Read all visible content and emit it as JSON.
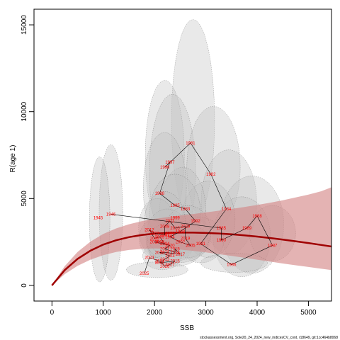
{
  "chart_data": {
    "type": "scatter",
    "xlabel": "SSB",
    "ylabel": "R(age 1)",
    "xlim": [
      -350,
      5450
    ],
    "ylim": [
      -900,
      15900
    ],
    "x_ticks": [
      0,
      1000,
      2000,
      3000,
      4000,
      5000
    ],
    "y_ticks": [
      0,
      5000,
      10000,
      15000
    ],
    "grid": false,
    "footnote": "stockassessment.org, Sole20_24_2024_new_indicesCV_cont, r18649, git:1cc464b8068",
    "colors": {
      "curve": "#a00000",
      "band": "#d28080",
      "label": "#ff0000",
      "ellipse": "#bfbfbf"
    },
    "points": [
      {
        "label": "1981",
        "x": 2700,
        "y": 8200
      },
      {
        "label": "1982",
        "x": 3100,
        "y": 6400
      },
      {
        "label": "1983",
        "x": 2600,
        "y": 4400
      },
      {
        "label": "1984",
        "x": 3400,
        "y": 4400
      },
      {
        "label": "1985",
        "x": 3300,
        "y": 3300
      },
      {
        "label": "1986",
        "x": 3500,
        "y": 1200
      },
      {
        "label": "1987",
        "x": 4300,
        "y": 2300
      },
      {
        "label": "1988",
        "x": 4000,
        "y": 4000
      },
      {
        "label": "1989",
        "x": 3800,
        "y": 3300
      },
      {
        "label": "1990",
        "x": 3300,
        "y": 2600
      },
      {
        "label": "1991",
        "x": 2900,
        "y": 2400
      },
      {
        "label": "1992",
        "x": 2800,
        "y": 3700
      },
      {
        "label": "1993",
        "x": 2500,
        "y": 3100
      },
      {
        "label": "1994",
        "x": 2300,
        "y": 2800
      },
      {
        "label": "1995",
        "x": 2400,
        "y": 4600
      },
      {
        "label": "1996",
        "x": 2200,
        "y": 6800
      },
      {
        "label": "1997",
        "x": 2300,
        "y": 7100
      },
      {
        "label": "1998",
        "x": 2100,
        "y": 5300
      },
      {
        "label": "1999",
        "x": 2400,
        "y": 3900
      },
      {
        "label": "2000",
        "x": 2000,
        "y": 2700
      },
      {
        "label": "2001",
        "x": 2200,
        "y": 2900
      },
      {
        "label": "2002",
        "x": 2500,
        "y": 2500
      },
      {
        "label": "2003",
        "x": 2300,
        "y": 1700
      },
      {
        "label": "2004",
        "x": 2200,
        "y": 2400
      },
      {
        "label": "2005",
        "x": 2700,
        "y": 2300
      },
      {
        "label": "2006",
        "x": 2100,
        "y": 2500
      },
      {
        "label": "2007",
        "x": 2000,
        "y": 3000
      },
      {
        "label": "2008",
        "x": 2200,
        "y": 3400
      },
      {
        "label": "2009",
        "x": 2100,
        "y": 2800
      },
      {
        "label": "2010",
        "x": 2400,
        "y": 3300
      },
      {
        "label": "2011",
        "x": 2300,
        "y": 3700
      },
      {
        "label": "2012",
        "x": 1900,
        "y": 3200
      },
      {
        "label": "2013",
        "x": 2200,
        "y": 1500
      },
      {
        "label": "2014",
        "x": 2100,
        "y": 1300
      },
      {
        "label": "2015",
        "x": 2400,
        "y": 1400
      },
      {
        "label": "2016",
        "x": 2200,
        "y": 1900
      },
      {
        "label": "2017",
        "x": 2500,
        "y": 1800
      },
      {
        "label": "2018",
        "x": 2400,
        "y": 2100
      },
      {
        "label": "2019",
        "x": 2600,
        "y": 2700
      },
      {
        "label": "2020",
        "x": 2300,
        "y": 2300
      },
      {
        "label": "2021",
        "x": 2200,
        "y": 2100
      },
      {
        "label": "2022",
        "x": 2100,
        "y": 1900
      },
      {
        "label": "2023",
        "x": 1900,
        "y": 1600
      },
      {
        "label": "2024",
        "x": 2100,
        "y": 1400
      },
      {
        "label": "2025",
        "x": 1800,
        "y": 700
      },
      {
        "label": "2026",
        "x": 2200,
        "y": 1100
      },
      {
        "label": "2027",
        "x": 2300,
        "y": 1200
      },
      {
        "label": "2028",
        "x": 2400,
        "y": 1900
      },
      {
        "label": "2029",
        "x": 2600,
        "y": 3400
      },
      {
        "label": "2030",
        "x": 2000,
        "y": 2500
      },
      {
        "label": "1945",
        "x": 900,
        "y": 3900
      },
      {
        "label": "1946",
        "x": 1150,
        "y": 4100
      },
      {
        "label": "2099",
        "x": 2300,
        "y": 3000
      }
    ],
    "path_order": [
      "1946",
      "1985",
      "1990",
      "1989",
      "1988",
      "1987",
      "1986",
      "1991",
      "1984",
      "1982",
      "1981",
      "1996",
      "1997",
      "1998",
      "1995",
      "1983",
      "1992",
      "1993",
      "1994",
      "2002",
      "2005",
      "2019",
      "2029",
      "2010",
      "2011",
      "2008",
      "2001",
      "2007",
      "2012",
      "2000",
      "2009",
      "2004",
      "2006",
      "2030",
      "2020",
      "2021",
      "2028",
      "2018",
      "2017",
      "2016",
      "2022",
      "2003",
      "2013",
      "2014",
      "2015",
      "2027",
      "2026",
      "2024",
      "2023",
      "2025"
    ],
    "ellipses": [
      {
        "cx": 2750,
        "cy": 9500,
        "rx": 420,
        "ry": 5800
      },
      {
        "cx": 2200,
        "cy": 7500,
        "rx": 380,
        "ry": 4300
      },
      {
        "cx": 2350,
        "cy": 6500,
        "rx": 450,
        "ry": 4500
      },
      {
        "cx": 3150,
        "cy": 6800,
        "rx": 520,
        "ry": 3500
      },
      {
        "cx": 3450,
        "cy": 4800,
        "rx": 540,
        "ry": 3000
      },
      {
        "cx": 3900,
        "cy": 3500,
        "rx": 620,
        "ry": 2800
      },
      {
        "cx": 3700,
        "cy": 2800,
        "rx": 560,
        "ry": 2300
      },
      {
        "cx": 4300,
        "cy": 3000,
        "rx": 450,
        "ry": 1600
      },
      {
        "cx": 1150,
        "cy": 4200,
        "rx": 230,
        "ry": 3900
      },
      {
        "cx": 930,
        "cy": 3800,
        "rx": 200,
        "ry": 3600
      },
      {
        "cx": 3050,
        "cy": 3800,
        "rx": 520,
        "ry": 2200
      },
      {
        "cx": 2550,
        "cy": 4300,
        "rx": 450,
        "ry": 2500
      },
      {
        "cx": 2200,
        "cy": 5600,
        "rx": 420,
        "ry": 3200
      },
      {
        "cx": 2400,
        "cy": 4100,
        "rx": 500,
        "ry": 2300
      },
      {
        "cx": 2050,
        "cy": 3300,
        "rx": 360,
        "ry": 1700
      },
      {
        "cx": 2250,
        "cy": 2800,
        "rx": 420,
        "ry": 1600
      },
      {
        "cx": 2600,
        "cy": 2800,
        "rx": 500,
        "ry": 1300
      },
      {
        "cx": 2900,
        "cy": 2600,
        "rx": 450,
        "ry": 1300
      },
      {
        "cx": 2300,
        "cy": 2300,
        "rx": 450,
        "ry": 1000
      },
      {
        "cx": 2150,
        "cy": 1700,
        "rx": 380,
        "ry": 800
      },
      {
        "cx": 2050,
        "cy": 900,
        "rx": 600,
        "ry": 450
      },
      {
        "cx": 3550,
        "cy": 1300,
        "rx": 650,
        "ry": 550
      },
      {
        "cx": 2400,
        "cy": 2000,
        "rx": 500,
        "ry": 900
      },
      {
        "cx": 2650,
        "cy": 3100,
        "rx": 450,
        "ry": 1500
      },
      {
        "cx": 2000,
        "cy": 2700,
        "rx": 300,
        "ry": 1100
      },
      {
        "cx": 2200,
        "cy": 3600,
        "rx": 400,
        "ry": 1800
      },
      {
        "cx": 2450,
        "cy": 2500,
        "rx": 600,
        "ry": 1200
      }
    ],
    "curve": {
      "x": [
        0,
        250,
        500,
        750,
        1000,
        1250,
        1500,
        1750,
        2000,
        2250,
        2500,
        2750,
        3000,
        3250,
        3500,
        3750,
        4000,
        4250,
        4500,
        4750,
        5000,
        5250,
        5450
      ],
      "y": [
        0,
        880,
        1530,
        2000,
        2350,
        2600,
        2780,
        2900,
        2980,
        3020,
        3040,
        3040,
        3020,
        2990,
        2940,
        2880,
        2810,
        2730,
        2640,
        2540,
        2440,
        2330,
        2240
      ],
      "lower": [
        0,
        650,
        1130,
        1480,
        1740,
        1920,
        2040,
        2100,
        2130,
        2110,
        2060,
        1990,
        1900,
        1800,
        1700,
        1590,
        1480,
        1370,
        1260,
        1160,
        1060,
        960,
        880
      ],
      "upper": [
        0,
        1110,
        1930,
        2520,
        2960,
        3280,
        3520,
        3700,
        3830,
        3930,
        4020,
        4110,
        4200,
        4300,
        4400,
        4510,
        4630,
        4760,
        4900,
        5060,
        5230,
        5420,
        5650
      ]
    }
  }
}
